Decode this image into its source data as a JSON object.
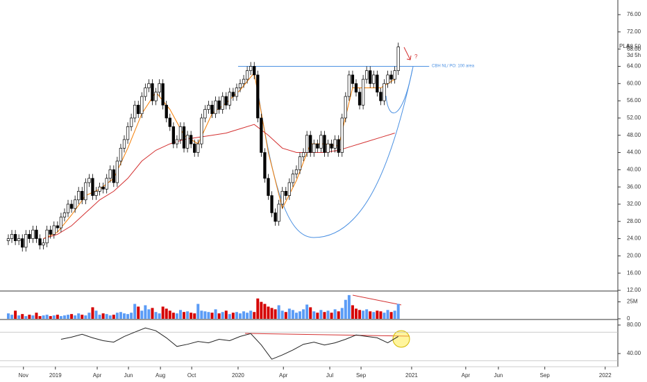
{
  "chart_data": [
    {
      "type": "candlestick",
      "x": [
        0,
        1,
        2,
        3,
        4,
        5,
        6,
        7,
        8,
        9,
        10,
        11,
        12,
        13,
        14,
        15,
        16,
        17,
        18,
        19,
        20,
        21,
        22,
        23,
        24,
        25,
        26,
        27,
        28,
        29,
        30,
        31,
        32,
        33,
        34,
        35,
        36,
        37,
        38,
        39,
        40,
        41,
        42,
        43,
        44,
        45,
        46,
        47,
        48,
        49,
        50,
        51,
        52,
        53,
        54,
        55,
        56,
        57,
        58,
        59,
        60,
        61,
        62,
        63,
        64,
        65,
        66,
        67,
        68,
        69,
        70,
        71,
        72,
        73,
        74,
        75,
        76,
        77,
        78,
        79,
        80,
        81,
        82,
        83,
        84,
        85,
        86,
        87,
        88,
        89,
        90,
        91,
        92,
        93,
        94,
        95,
        96,
        97,
        98,
        99,
        100,
        101,
        102,
        103,
        104,
        105,
        106,
        107,
        108,
        109,
        110,
        111
      ],
      "open": [
        23.5,
        24,
        25,
        23.5,
        24,
        22,
        25,
        24,
        26,
        24,
        22.5,
        23,
        26,
        25,
        27,
        26.5,
        29,
        30,
        32,
        31,
        33,
        35,
        33,
        37,
        38,
        34,
        35,
        36,
        35.5,
        38,
        40,
        37,
        42,
        45,
        47,
        50,
        52,
        55,
        53,
        57,
        59,
        60,
        56,
        58,
        60,
        55,
        52,
        50,
        46,
        47,
        50,
        45,
        48,
        46,
        44,
        46,
        52,
        54,
        55,
        53,
        56,
        54,
        57,
        55,
        58,
        57,
        59,
        60,
        61,
        63,
        64,
        62,
        52,
        44,
        38,
        34,
        30,
        28,
        32,
        35,
        34,
        37,
        39,
        40,
        43,
        44,
        48,
        44,
        46,
        45,
        48,
        44,
        46,
        45,
        47,
        44,
        52,
        57,
        62,
        60,
        58,
        55,
        61,
        63,
        60,
        62,
        58,
        56,
        60,
        62,
        61,
        63
      ],
      "high": [
        25,
        26,
        26,
        25,
        25,
        26,
        26,
        27,
        27,
        25,
        24,
        27,
        27,
        28,
        28,
        30,
        31,
        33,
        33,
        34,
        36,
        36,
        38,
        39,
        39,
        36,
        37,
        37,
        39,
        41,
        41,
        43,
        46,
        48,
        51,
        53,
        56,
        56,
        58,
        60,
        61,
        61,
        59,
        61,
        61,
        56,
        53,
        51,
        48,
        51,
        51,
        49,
        49,
        47,
        47,
        53,
        55,
        56,
        56,
        57,
        57,
        58,
        58,
        59,
        59,
        60,
        61,
        62,
        64,
        65,
        65,
        63,
        53,
        45,
        39,
        35,
        31,
        33,
        36,
        36,
        38,
        40,
        41,
        44,
        45,
        49,
        49,
        47,
        47,
        49,
        49,
        47,
        47,
        48,
        48,
        53,
        58,
        63,
        63,
        61,
        59,
        62,
        64,
        64,
        63,
        63,
        59,
        61,
        63,
        63,
        64,
        69.5
      ],
      "low": [
        22.5,
        23,
        22.5,
        22.5,
        21,
        21,
        23,
        23,
        23,
        21.5,
        21.5,
        22,
        24,
        24,
        25.5,
        25.5,
        28,
        29,
        30,
        30,
        32,
        32,
        32,
        36,
        33,
        33,
        34,
        34.5,
        34.5,
        37,
        36,
        36,
        41,
        44,
        46,
        49,
        51,
        52,
        52,
        56,
        58,
        55,
        55,
        57,
        54,
        51,
        49,
        45,
        45,
        46,
        44,
        44,
        45,
        43,
        43,
        45,
        51,
        53,
        52,
        52,
        53,
        53,
        54,
        54,
        56,
        56,
        58,
        59,
        60,
        62,
        61,
        51,
        43,
        37,
        33,
        29,
        27,
        27,
        31,
        33,
        33,
        36,
        38,
        39,
        42,
        43,
        43,
        43,
        44,
        44,
        43,
        43,
        44,
        44,
        43,
        43,
        51,
        56,
        59,
        57,
        54,
        54,
        60,
        59,
        59,
        57,
        55,
        55,
        59,
        60,
        60,
        62
      ],
      "close": [
        24,
        25,
        23.5,
        24,
        22,
        25,
        24,
        26,
        24,
        22.5,
        23,
        26,
        25,
        27,
        26.5,
        29,
        30,
        32,
        31,
        33,
        35,
        33,
        37,
        38,
        34,
        35,
        36,
        35.5,
        38,
        40,
        37,
        42,
        45,
        47,
        50,
        52,
        55,
        53,
        57,
        59,
        60,
        56,
        58,
        60,
        55,
        52,
        50,
        46,
        47,
        50,
        45,
        48,
        46,
        44,
        46,
        52,
        54,
        55,
        53,
        56,
        54,
        57,
        55,
        58,
        57,
        59,
        60,
        61,
        63,
        64,
        62,
        52,
        44,
        38,
        34,
        30,
        28,
        32,
        35,
        34,
        37,
        39,
        40,
        43,
        44,
        48,
        44,
        46,
        45,
        48,
        44,
        46,
        45,
        47,
        44,
        52,
        57,
        62,
        60,
        58,
        55,
        61,
        63,
        60,
        62,
        58,
        56,
        60,
        62,
        61,
        63,
        68.5
      ],
      "up_color": "#ffffff",
      "down_color": "#000000",
      "lines": [
        {
          "color": "#f57c00",
          "x": [
            10,
            14,
            18,
            22,
            26,
            30,
            34,
            38,
            42,
            46,
            50,
            54,
            58,
            62,
            66,
            70,
            74,
            78,
            82,
            86,
            90,
            94,
            98,
            102,
            106,
            110
          ],
          "values": [
            24,
            25.5,
            29.5,
            34,
            35.5,
            38,
            45,
            53,
            58,
            54,
            48,
            46,
            53,
            55.5,
            58.5,
            62.5,
            44,
            31,
            37.5,
            46,
            46,
            45.5,
            59,
            59,
            59,
            61
          ]
        },
        {
          "color": "#d32f2f",
          "x": [
            10,
            14,
            18,
            22,
            26,
            30,
            34,
            38,
            42,
            46,
            50,
            54,
            58,
            62,
            66,
            70,
            74,
            78,
            82,
            86,
            90,
            94,
            98,
            102,
            106,
            110
          ],
          "values": [
            24,
            25,
            27,
            30,
            33,
            35,
            38,
            42,
            44.5,
            46,
            47,
            47.5,
            48,
            48.5,
            49.5,
            50.5,
            48,
            45,
            44,
            44,
            44,
            44.5,
            45.5,
            46.5,
            47.5,
            48.5
          ]
        }
      ],
      "resistance": {
        "value": 64,
        "label": "CBH NL/ PO: 100 area",
        "color": "#4a90e2"
      },
      "note": "?",
      "last_price": {
        "symbol": "PLA",
        "value": 68.5,
        "label": "68.50",
        "countdown": "3d 5h"
      },
      "xlim": [
        -2.37,
        173.5
      ],
      "ylim": [
        12,
        79.4
      ],
      "yticks": [
        {
          "value": 12,
          "label": "12.00"
        },
        {
          "value": 16,
          "label": "16.00"
        },
        {
          "value": 20,
          "label": "20.00"
        },
        {
          "value": 24,
          "label": "24.00"
        },
        {
          "value": 28,
          "label": "28.00"
        },
        {
          "value": 32,
          "label": "32.00"
        },
        {
          "value": 36,
          "label": "36.00"
        },
        {
          "value": 40,
          "label": "40.00"
        },
        {
          "value": 44,
          "label": "44.00"
        },
        {
          "value": 48,
          "label": "48.00"
        },
        {
          "value": 52,
          "label": "52.00"
        },
        {
          "value": 56,
          "label": "56.00"
        },
        {
          "value": 60,
          "label": "60.00"
        },
        {
          "value": 64,
          "label": "64.00"
        },
        {
          "value": 68,
          "label": "68.00"
        },
        {
          "value": 72,
          "label": "72.00"
        },
        {
          "value": 76,
          "label": "76.00"
        }
      ]
    },
    {
      "type": "bar",
      "x": [
        0,
        1,
        2,
        3,
        4,
        5,
        6,
        7,
        8,
        9,
        10,
        11,
        12,
        13,
        14,
        15,
        16,
        17,
        18,
        19,
        20,
        21,
        22,
        23,
        24,
        25,
        26,
        27,
        28,
        29,
        30,
        31,
        32,
        33,
        34,
        35,
        36,
        37,
        38,
        39,
        40,
        41,
        42,
        43,
        44,
        45,
        46,
        47,
        48,
        49,
        50,
        51,
        52,
        53,
        54,
        55,
        56,
        57,
        58,
        59,
        60,
        61,
        62,
        63,
        64,
        65,
        66,
        67,
        68,
        69,
        70,
        71,
        72,
        73,
        74,
        75,
        76,
        77,
        78,
        79,
        80,
        81,
        82,
        83,
        84,
        85,
        86,
        87,
        88,
        89,
        90,
        91,
        92,
        93,
        94,
        95,
        96,
        97,
        98,
        99,
        100,
        101,
        102,
        103,
        104,
        105,
        106,
        107,
        108,
        109,
        110,
        111
      ],
      "values": [
        8,
        6,
        12,
        5,
        7,
        4,
        6,
        5,
        9,
        4,
        5,
        6,
        4,
        5,
        6,
        4,
        5,
        6,
        7,
        5,
        8,
        6,
        5,
        9,
        17,
        12,
        6,
        8,
        7,
        5,
        6,
        9,
        10,
        8,
        7,
        9,
        22,
        18,
        12,
        20,
        14,
        16,
        10,
        8,
        18,
        15,
        12,
        9,
        8,
        13,
        10,
        11,
        9,
        8,
        22,
        12,
        11,
        10,
        9,
        14,
        8,
        10,
        12,
        7,
        9,
        10,
        8,
        11,
        9,
        12,
        10,
        30,
        25,
        22,
        18,
        16,
        14,
        20,
        12,
        10,
        15,
        13,
        9,
        11,
        14,
        21,
        17,
        11,
        9,
        13,
        10,
        12,
        9,
        14,
        11,
        16,
        28,
        35,
        20,
        15,
        13,
        12,
        14,
        11,
        10,
        12,
        11,
        9,
        13,
        10,
        12,
        22
      ],
      "up_color": "#5b9cf6",
      "down_color": "#d50000",
      "xlim": [
        -2.37,
        173.5
      ],
      "ylim": [
        0,
        40
      ],
      "yticks": [
        0,
        {
          "value": 25,
          "label": "25M"
        }
      ]
    },
    {
      "type": "line",
      "x": [
        15,
        18,
        21,
        24,
        27,
        30,
        33,
        36,
        39,
        42,
        45,
        48,
        51,
        54,
        57,
        60,
        63,
        66,
        69,
        72,
        75,
        78,
        81,
        84,
        87,
        90,
        93,
        96,
        99,
        102,
        105,
        108,
        111
      ],
      "values": [
        60,
        63,
        67,
        62,
        58,
        56,
        64,
        70,
        76,
        72,
        62,
        50,
        53,
        57,
        55,
        60,
        58,
        64,
        68,
        52,
        32,
        38,
        45,
        53,
        56,
        52,
        55,
        60,
        66,
        64,
        62,
        55,
        64
      ],
      "color": "#222222",
      "levels": [
        70,
        30
      ],
      "xlim": [
        -2.37,
        173.5
      ],
      "ylim": [
        21.5,
        86.8
      ],
      "yticks": [
        {
          "value": 40,
          "label": "40.00"
        },
        {
          "value": 80,
          "label": "80.00"
        }
      ],
      "xticks": [
        {
          "value": 4.3,
          "label": "Nov"
        },
        {
          "value": 13.4,
          "label": "2019"
        },
        {
          "value": 25.3,
          "label": "Apr"
        },
        {
          "value": 34.2,
          "label": "Jun"
        },
        {
          "value": 43.3,
          "label": "Aug"
        },
        {
          "value": 52.2,
          "label": "Oct"
        },
        {
          "value": 65.4,
          "label": "2020"
        },
        {
          "value": 78.3,
          "label": "Apr"
        },
        {
          "value": 91.5,
          "label": "Jul"
        },
        {
          "value": 100.4,
          "label": "Sep"
        },
        {
          "value": 114.8,
          "label": "2021"
        },
        {
          "value": 130.2,
          "label": "Apr"
        },
        {
          "value": 139.5,
          "label": "Jun"
        },
        {
          "value": 152.7,
          "label": "Sep"
        },
        {
          "value": 169.9,
          "label": "2022"
        }
      ]
    }
  ]
}
